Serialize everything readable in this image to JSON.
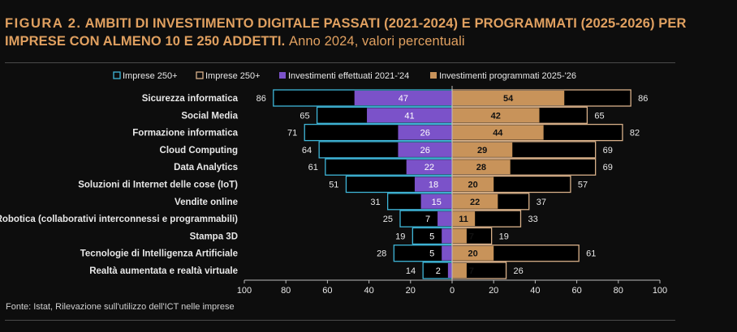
{
  "title": {
    "figure_label": "FIGURA 2.",
    "main": "AMBITI DI INVESTIMENTO DIGITALE PASSATI (2021-2024) E PROGRAMMATI (2025-2026) PER IMPRESE CON ALMENO 10 E 250 ADDETTI.",
    "subtitle": "Anno 2024, valori percentuali"
  },
  "source": "Fonte: Istat, Rilevazione sull'utilizzo dell'ICT nelle imprese",
  "colors": {
    "past_fill": "#7b52c9",
    "planned_fill": "#c8935a",
    "past_outline": "#3fb6d8",
    "planned_outline": "#d8b089",
    "bar_bg": "#000000",
    "text": "#e8e8e8"
  },
  "chart_data": {
    "type": "bar",
    "orientation": "horizontal-diverging",
    "categories": [
      "Sicurezza informatica",
      "Social Media",
      "Formazione informatica",
      "Cloud Computing",
      "Data Analytics",
      "Soluzioni di Internet delle cose (IoT)",
      "Vendite online",
      "Robotica (collaborativi interconnessi e programmabili)",
      "Stampa 3D",
      "Tecnologie di Intelligenza Artificiale",
      "Realtà aumentata e realtà virtuale"
    ],
    "series": [
      {
        "name": "Imprese 250+",
        "side": "left",
        "style": "outline",
        "values": [
          86,
          65,
          71,
          64,
          61,
          51,
          31,
          25,
          19,
          28,
          14
        ]
      },
      {
        "name": "Imprese 250+",
        "side": "right",
        "style": "outline",
        "values": [
          86,
          65,
          82,
          69,
          69,
          57,
          37,
          33,
          19,
          61,
          26
        ]
      },
      {
        "name": "Investimenti effettuati  2021-'24",
        "side": "left",
        "style": "fill",
        "values": [
          47,
          41,
          26,
          26,
          22,
          18,
          15,
          7,
          5,
          5,
          2
        ]
      },
      {
        "name": "Investimenti programmati 2025-'26",
        "side": "right",
        "style": "fill",
        "values": [
          54,
          42,
          44,
          29,
          28,
          20,
          22,
          11,
          7,
          20,
          7
        ]
      }
    ],
    "x_ticks": [
      "100",
      "80",
      "60",
      "40",
      "20",
      "0",
      "20",
      "40",
      "60",
      "80",
      "100"
    ],
    "xlim": [
      -100,
      100
    ],
    "legend_position": "top",
    "grid": false
  }
}
